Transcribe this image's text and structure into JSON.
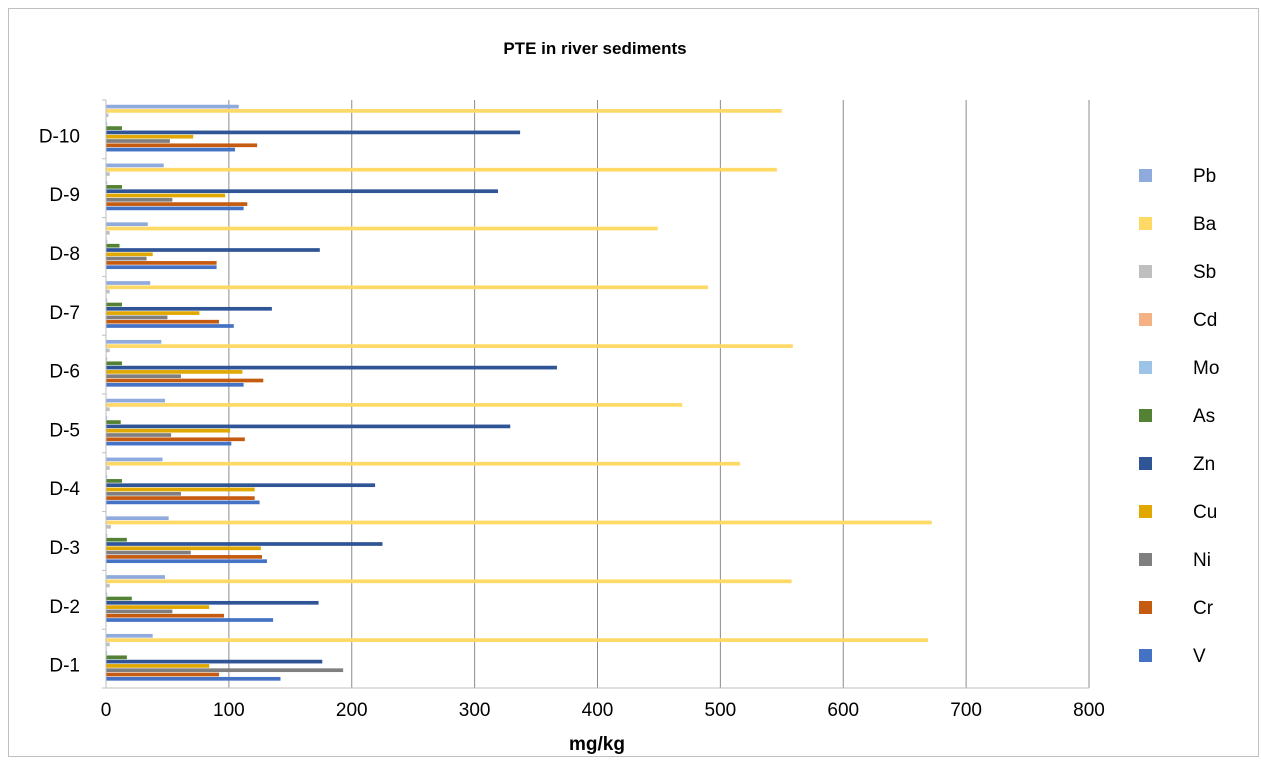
{
  "chart_data": {
    "type": "bar",
    "orientation": "horizontal",
    "title": "PTE in river sediments",
    "xlabel": "mg/kg",
    "ylabel": "",
    "xlim": [
      0,
      800
    ],
    "xticks": [
      0,
      100,
      200,
      300,
      400,
      500,
      600,
      700,
      800
    ],
    "grid": true,
    "legend_position": "right",
    "categories": [
      "D-1",
      "D-2",
      "D-3",
      "D-4",
      "D-5",
      "D-6",
      "D-7",
      "D-8",
      "D-9",
      "D-10"
    ],
    "series": [
      {
        "name": "V",
        "color": "#4472C4",
        "values": [
          142,
          136,
          131,
          125,
          102,
          112,
          104,
          90,
          112,
          105
        ]
      },
      {
        "name": "Cr",
        "color": "#C55A11",
        "values": [
          92,
          96,
          127,
          121,
          113,
          128,
          92,
          90,
          115,
          123
        ]
      },
      {
        "name": "Ni",
        "color": "#7F7F7F",
        "values": [
          193,
          54,
          69,
          61,
          53,
          61,
          50,
          33,
          54,
          52
        ]
      },
      {
        "name": "Cu",
        "color": "#E0A800",
        "values": [
          84,
          84,
          126,
          121,
          101,
          111,
          76,
          38,
          97,
          71
        ]
      },
      {
        "name": "Zn",
        "color": "#2F5597",
        "values": [
          176,
          173,
          225,
          219,
          329,
          367,
          135,
          174,
          319,
          337
        ]
      },
      {
        "name": "As",
        "color": "#548235",
        "values": [
          17,
          21,
          17,
          13,
          12,
          13,
          13,
          11,
          13,
          13
        ]
      },
      {
        "name": "Mo",
        "color": "#9DC3E6",
        "values": [
          1,
          1,
          1,
          1,
          1,
          1,
          1,
          1,
          1,
          1
        ]
      },
      {
        "name": "Cd",
        "color": "#F4B183",
        "values": [
          0.5,
          0.5,
          0.5,
          0.5,
          0.5,
          0.5,
          0.5,
          0.5,
          0.5,
          0.5
        ]
      },
      {
        "name": "Sb",
        "color": "#BFBFBF",
        "values": [
          3,
          3,
          4,
          3,
          3,
          3,
          3,
          3,
          3,
          2
        ]
      },
      {
        "name": "Ba",
        "color": "#FFD966",
        "values": [
          669,
          558,
          672,
          516,
          469,
          559,
          490,
          449,
          546,
          550
        ]
      },
      {
        "name": "Pb",
        "color": "#8FAADC",
        "values": [
          38,
          48,
          51,
          46,
          48,
          45,
          36,
          34,
          47,
          108
        ]
      }
    ]
  }
}
